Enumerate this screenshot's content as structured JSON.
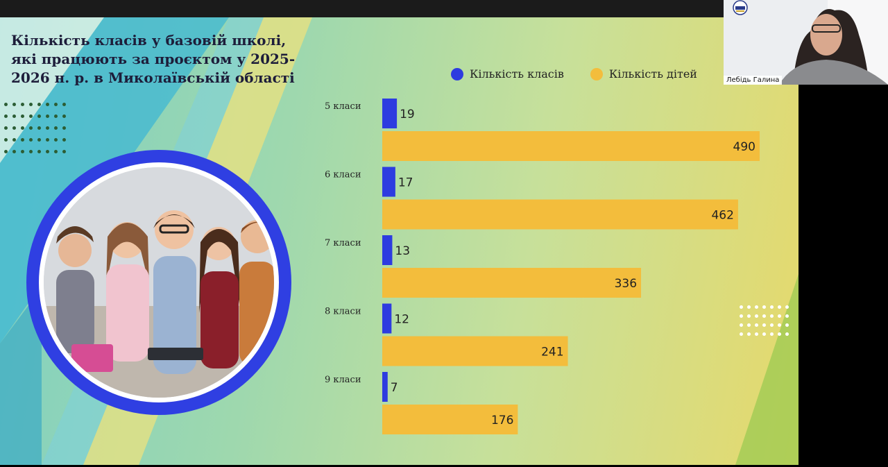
{
  "slide": {
    "title": "Кількість класів у базовій школі, які працюють за проєктом у 2025-2026 н. р. в Миколаївській області"
  },
  "legend": [
    {
      "label": "Кількість класів",
      "color": "#2d3ce0"
    },
    {
      "label": "Кількість дітей",
      "color": "#f3bd3c"
    }
  ],
  "chart_data": {
    "type": "bar",
    "orientation": "horizontal",
    "categories": [
      "5 класи",
      "6  класи",
      "7 класи",
      "8 класи",
      "9 класи"
    ],
    "series": [
      {
        "name": "Кількість класів",
        "values": [
          19,
          17,
          13,
          12,
          7
        ],
        "color": "#2d3ce0"
      },
      {
        "name": "Кількість дітей",
        "values": [
          490,
          462,
          336,
          241,
          176
        ],
        "color": "#f3bd3c"
      }
    ],
    "xlim": [
      0,
      490
    ],
    "legend_position": "top",
    "grid": false,
    "title": "Кількість класів у базовій школі, які працюють за проєктом у 2025-2026 н. р. в Миколаївській області"
  },
  "webcam": {
    "participant_name": "Лебідь Галина",
    "logo_text": "МОІППО"
  },
  "colors": {
    "frame_blue": "#2f3fe2",
    "bar_blue": "#2d3ce0",
    "bar_yellow": "#f3bd3c"
  }
}
